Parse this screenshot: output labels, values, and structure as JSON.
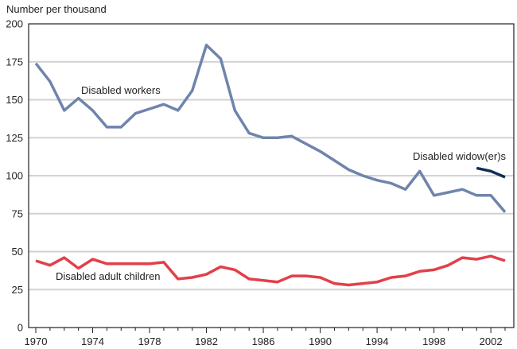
{
  "chart_data": {
    "type": "line",
    "title": "",
    "xlabel": "",
    "ylabel": "Number per thousand",
    "ylim": [
      0,
      200
    ],
    "yticks": [
      0,
      25,
      50,
      75,
      100,
      125,
      150,
      175,
      200
    ],
    "xlim": [
      1970,
      2003
    ],
    "xticks": [
      1970,
      1974,
      1978,
      1982,
      1986,
      1990,
      1994,
      1998,
      2002
    ],
    "grid": true,
    "series": [
      {
        "name": "Disabled workers",
        "color": "#6f84ad",
        "x": [
          1970,
          1971,
          1972,
          1973,
          1974,
          1975,
          1976,
          1977,
          1978,
          1979,
          1980,
          1981,
          1982,
          1983,
          1984,
          1985,
          1986,
          1987,
          1988,
          1989,
          1990,
          1991,
          1992,
          1993,
          1994,
          1995,
          1996,
          1997,
          1998,
          1999,
          2000,
          2001,
          2002,
          2003
        ],
        "values": [
          174,
          162,
          143,
          151,
          143,
          132,
          132,
          141,
          144,
          147,
          143,
          156,
          186,
          177,
          143,
          128,
          125,
          125,
          126,
          121,
          116,
          110,
          104,
          100,
          97,
          95,
          91,
          103,
          87,
          89,
          91,
          87,
          87,
          76
        ]
      },
      {
        "name": "Disabled widow(er)s",
        "color": "#0d2f57",
        "x": [
          2001,
          2002,
          2003
        ],
        "values": [
          105,
          103,
          99
        ]
      },
      {
        "name": "Disabled adult children",
        "color": "#e2404a",
        "x": [
          1970,
          1971,
          1972,
          1973,
          1974,
          1975,
          1976,
          1977,
          1978,
          1979,
          1980,
          1981,
          1982,
          1983,
          1984,
          1985,
          1986,
          1987,
          1988,
          1989,
          1990,
          1991,
          1992,
          1993,
          1994,
          1995,
          1996,
          1997,
          1998,
          1999,
          2000,
          2001,
          2002,
          2003
        ],
        "values": [
          44,
          41,
          46,
          39,
          45,
          42,
          42,
          42,
          42,
          43,
          32,
          33,
          35,
          40,
          38,
          32,
          31,
          30,
          34,
          34,
          33,
          29,
          28,
          29,
          30,
          33,
          34,
          37,
          38,
          41,
          46,
          45,
          47,
          44
        ]
      }
    ]
  }
}
